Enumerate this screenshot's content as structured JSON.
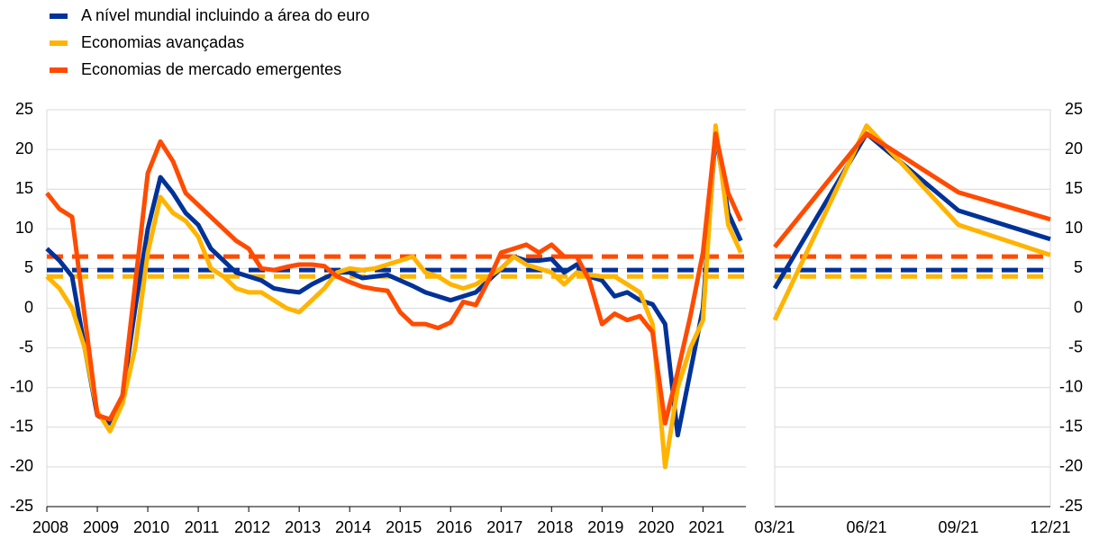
{
  "chart_data": [
    {
      "type": "line",
      "x": [
        2008,
        2008.25,
        2008.5,
        2008.75,
        2009,
        2009.25,
        2009.5,
        2009.75,
        2010,
        2010.25,
        2010.5,
        2010.75,
        2011,
        2011.25,
        2011.5,
        2011.75,
        2012,
        2012.25,
        2012.5,
        2012.75,
        2013,
        2013.25,
        2013.5,
        2013.75,
        2014,
        2014.25,
        2014.5,
        2014.75,
        2015,
        2015.25,
        2015.5,
        2015.75,
        2016,
        2016.25,
        2016.5,
        2016.75,
        2017,
        2017.25,
        2017.5,
        2017.75,
        2018,
        2018.25,
        2018.5,
        2018.75,
        2019,
        2019.25,
        2019.5,
        2019.75,
        2020,
        2020.25,
        2020.5,
        2020.75,
        2021,
        2021.25,
        2021.5,
        2021.75
      ],
      "xlim": [
        2008,
        2021.85
      ],
      "xticks": [
        2008,
        2009,
        2010,
        2011,
        2012,
        2013,
        2014,
        2015,
        2016,
        2017,
        2018,
        2019,
        2020,
        2021
      ],
      "ylim": [
        -25,
        25
      ],
      "yticks": [
        -25,
        -20,
        -15,
        -10,
        -5,
        0,
        5,
        10,
        15,
        20,
        25
      ],
      "grid": true,
      "series": [
        {
          "name": "A nível mundial incluindo a área do euro",
          "color": "#003299",
          "average": 4.8,
          "values": [
            7.5,
            6,
            4,
            -5,
            -13.5,
            -14.5,
            -11,
            0,
            10,
            16.5,
            14.5,
            12,
            10.5,
            7.5,
            6,
            4.5,
            4,
            3.5,
            2.5,
            2.2,
            2,
            3,
            3.8,
            4.5,
            4.5,
            3.8,
            4,
            4.2,
            3.5,
            2.8,
            2,
            1.5,
            1,
            1.5,
            2,
            3.5,
            5,
            6.5,
            6,
            6,
            6.2,
            4.5,
            5.5,
            4,
            3.5,
            1.5,
            2,
            1,
            0.5,
            -2,
            -16,
            -8,
            0,
            22,
            12,
            8.5
          ]
        },
        {
          "name": "Economias avançadas",
          "color": "#FFB400",
          "average": 4,
          "values": [
            4,
            2.5,
            0,
            -5,
            -13,
            -15.5,
            -12,
            -5,
            7,
            14,
            12,
            11,
            9,
            5,
            4,
            2.5,
            2,
            2,
            1,
            0,
            -0.5,
            1,
            2.5,
            4.5,
            5,
            4.8,
            5,
            5.5,
            6,
            6.5,
            4.5,
            4,
            3,
            2.5,
            3,
            4,
            5,
            6.5,
            5.5,
            5,
            4.5,
            3,
            4.5,
            4.2,
            4,
            4,
            3,
            2,
            -2,
            -20,
            -10,
            -5,
            -1.5,
            23,
            10.5,
            7
          ]
        },
        {
          "name": "Economias de mercado emergentes",
          "color": "#FF4B00",
          "average": 6.5,
          "values": [
            14.5,
            12.5,
            11.5,
            -1,
            -13.5,
            -14,
            -11,
            3,
            17,
            21,
            18.5,
            14.5,
            13,
            11.5,
            10,
            8.5,
            7.5,
            5,
            4.8,
            5.2,
            5.5,
            5.5,
            5.3,
            4,
            3.3,
            2.7,
            2.4,
            2.2,
            -0.5,
            -2,
            -2,
            -2.5,
            -1.8,
            0.8,
            0.4,
            3.5,
            7,
            7.5,
            8,
            7,
            8,
            6.5,
            6.5,
            3.5,
            -2,
            -0.7,
            -1.5,
            -1,
            -3,
            -14.5,
            -8,
            -1,
            7,
            22,
            14.5,
            11
          ]
        }
      ]
    },
    {
      "type": "line",
      "categories": [
        "03/21",
        "06/21",
        "09/21",
        "12/21"
      ],
      "ylim": [
        -25,
        25
      ],
      "yticks": [
        -25,
        -20,
        -15,
        -10,
        -5,
        0,
        5,
        10,
        15,
        20,
        25
      ],
      "grid": true,
      "series": [
        {
          "color": "#003299",
          "average": 4.8,
          "values": [
            2.5,
            22,
            12.3,
            8.7
          ]
        },
        {
          "color": "#FFB400",
          "average": 4,
          "values": [
            -1.5,
            23,
            10.5,
            6.7
          ]
        },
        {
          "color": "#FF4B00",
          "average": 6.5,
          "values": [
            7.7,
            22,
            14.6,
            11.2
          ]
        }
      ]
    }
  ]
}
